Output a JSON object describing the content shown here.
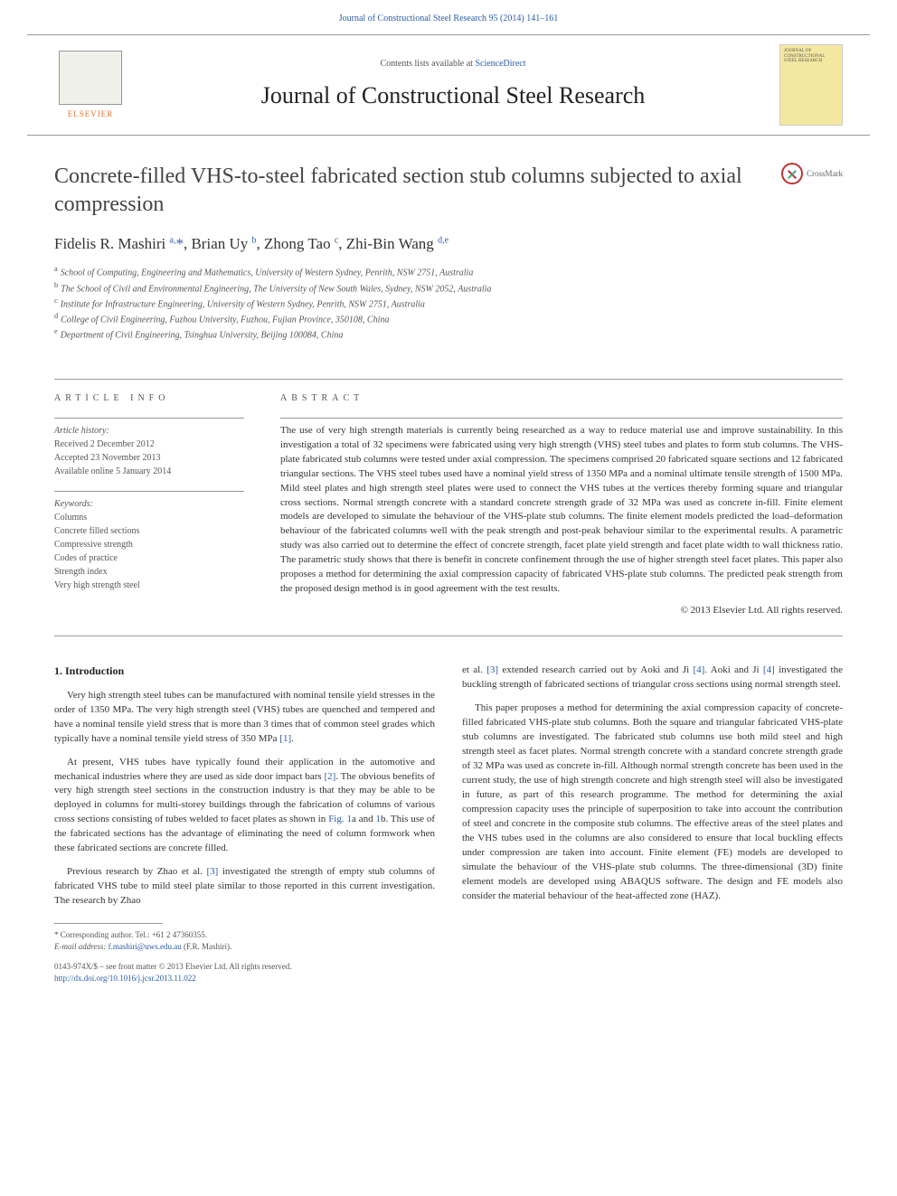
{
  "colors": {
    "link": "#2a5caa",
    "text": "#333333",
    "muted": "#555555",
    "rule": "#999999",
    "elsevier_orange": "#e8742c",
    "cover_bg": "#f4e8a0"
  },
  "header": {
    "top_link_prefix": "Journal of Constructional Steel Research 95 (2014) 141–161",
    "contents_prefix": "Contents lists available at ",
    "contents_link": "ScienceDirect",
    "journal_title": "Journal of Constructional Steel Research",
    "elsevier": "ELSEVIER",
    "cover_text": "JOURNAL OF CONSTRUCTIONAL STEEL RESEARCH"
  },
  "article": {
    "title": "Concrete-filled VHS-to-steel fabricated section stub columns subjected to axial compression",
    "crossmark": "CrossMark",
    "authors_html": "Fidelis R. Mashiri <sup>a,</sup><span class='star'>*</span>, Brian Uy <sup>b</sup>, Zhong Tao <sup>c</sup>, Zhi-Bin Wang <sup>d,e</sup>",
    "affiliations": {
      "a": "School of Computing, Engineering and Mathematics, University of Western Sydney, Penrith, NSW 2751, Australia",
      "b": "The School of Civil and Environmental Engineering, The University of New South Wales, Sydney, NSW 2052, Australia",
      "c": "Institute for Infrastructure Engineering, University of Western Sydney, Penrith, NSW 2751, Australia",
      "d": "College of Civil Engineering, Fuzhou University, Fuzhou, Fujian Province, 350108, China",
      "e": "Department of Civil Engineering, Tsinghua University, Beijing 100084, China"
    }
  },
  "info": {
    "heading": "ARTICLE INFO",
    "history_label": "Article history:",
    "received": "Received 2 December 2012",
    "accepted": "Accepted 23 November 2013",
    "online": "Available online 5 January 2014",
    "keywords_label": "Keywords:",
    "keywords": [
      "Columns",
      "Concrete filled sections",
      "Compressive strength",
      "Codes of practice",
      "Strength index",
      "Very high strength steel"
    ]
  },
  "abstract": {
    "heading": "ABSTRACT",
    "text": "The use of very high strength materials is currently being researched as a way to reduce material use and improve sustainability. In this investigation a total of 32 specimens were fabricated using very high strength (VHS) steel tubes and plates to form stub columns. The VHS-plate fabricated stub columns were tested under axial compression. The specimens comprised 20 fabricated square sections and 12 fabricated triangular sections. The VHS steel tubes used have a nominal yield stress of 1350 MPa and a nominal ultimate tensile strength of 1500 MPa. Mild steel plates and high strength steel plates were used to connect the VHS tubes at the vertices thereby forming square and triangular cross sections. Normal strength concrete with a standard concrete strength grade of 32 MPa was used as concrete in-fill. Finite element models are developed to simulate the behaviour of the VHS-plate stub columns. The finite element models predicted the load–deformation behaviour of the fabricated columns well with the peak strength and post-peak behaviour similar to the experimental results. A parametric study was also carried out to determine the effect of concrete strength, facet plate yield strength and facet plate width to wall thickness ratio. The parametric study shows that there is benefit in concrete confinement through the use of higher strength steel facet plates. This paper also proposes a method for determining the axial compression capacity of fabricated VHS-plate stub columns. The predicted peak strength from the proposed design method is in good agreement with the test results.",
    "copyright": "© 2013 Elsevier Ltd. All rights reserved."
  },
  "body": {
    "section1_heading": "1. Introduction",
    "col1_p1": "Very high strength steel tubes can be manufactured with nominal tensile yield stresses in the order of 1350 MPa. The very high strength steel (VHS) tubes are quenched and tempered and have a nominal tensile yield stress that is more than 3 times that of common steel grades which typically have a nominal tensile yield stress of 350 MPa [1].",
    "col1_p2": "At present, VHS tubes have typically found their application in the automotive and mechanical industries where they are used as side door impact bars [2]. The obvious benefits of very high strength steel sections in the construction industry is that they may be able to be deployed in columns for multi-storey buildings through the fabrication of columns of various cross sections consisting of tubes welded to facet plates as shown in Fig. 1a and 1b. This use of the fabricated sections has the advantage of eliminating the need of column formwork when these fabricated sections are concrete filled.",
    "col1_p3": "Previous research by Zhao et al. [3] investigated the strength of empty stub columns of fabricated VHS tube to mild steel plate similar to those reported in this current investigation. The research by Zhao",
    "col2_p1": "et al. [3] extended research carried out by Aoki and Ji [4]. Aoki and Ji [4] investigated the buckling strength of fabricated sections of triangular cross sections using normal strength steel.",
    "col2_p2": "This paper proposes a method for determining the axial compression capacity of concrete-filled fabricated VHS-plate stub columns. Both the square and triangular fabricated VHS-plate stub columns are investigated. The fabricated stub columns use both mild steel and high strength steel as facet plates. Normal strength concrete with a standard concrete strength grade of 32 MPa was used as concrete in-fill. Although normal strength concrete has been used in the current study, the use of high strength concrete and high strength steel will also be investigated in future, as part of this research programme. The method for determining the axial compression capacity uses the principle of superposition to take into account the contribution of steel and concrete in the composite stub columns. The effective areas of the steel plates and the VHS tubes used in the columns are also considered to ensure that local buckling effects under compression are taken into account. Finite element (FE) models are developed to simulate the behaviour of the VHS-plate stub columns. The three-dimensional (3D) finite element models are developed using ABAQUS software. The design and FE models also consider the material behaviour of the heat-affected zone (HAZ)."
  },
  "footnotes": {
    "corresponding": "* Corresponding author. Tel.: +61 2 47360355.",
    "email_label": "E-mail address: ",
    "email": "f.mashiri@uws.edu.au",
    "email_suffix": " (F.R. Mashiri)."
  },
  "bottom": {
    "issn": "0143-974X/$ – see front matter © 2013 Elsevier Ltd. All rights reserved.",
    "doi": "http://dx.doi.org/10.1016/j.jcsr.2013.11.022"
  }
}
